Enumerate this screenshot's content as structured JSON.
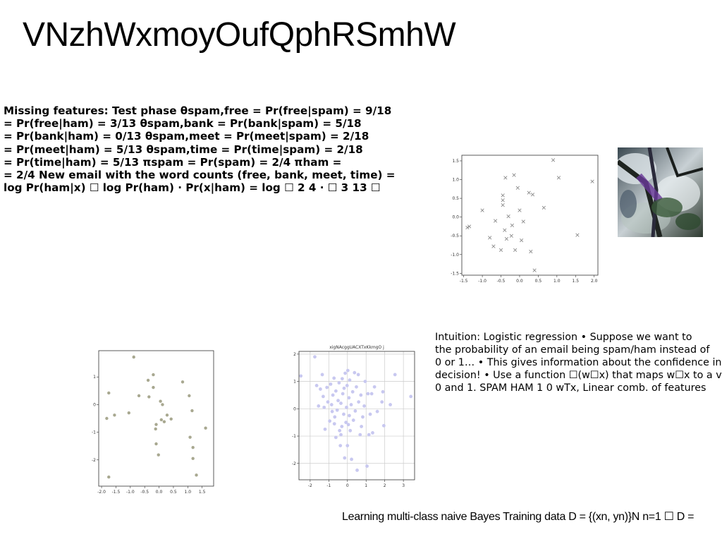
{
  "slide": {
    "title": "VNzhWxmoyOufQphRSmhW",
    "paragraph1_lines": [
      "Missing features: Test phase θspam,free = Pr(free|spam) = 9/18",
      "= Pr(free|ham) = 3/13 θspam,bank = Pr(bank|spam) = 5/18",
      "= Pr(bank|ham) = 0/13 θspam,meet = Pr(meet|spam) = 2/18",
      "= Pr(meet|ham) = 5/13 θspam,time = Pr(time|spam) = 2/18",
      "= Pr(time|ham) = 5/13 πspam = Pr(spam) = 2/4 πham =",
      "= 2/4 New email with the word counts (free, bank, meet, time) =",
      "log Pr(ham|x) ☐ log Pr(ham) · Pr(x|ham) = log ☐ 2 4 · ☐ 3 13 ☐"
    ],
    "paragraph2_lines": [
      "Intuition: Logistic regression • Suppose we want to",
      "the probability of an email being spam/ham instead of",
      "0 or 1… • This gives information about the confidence in",
      "decision! • Use a function ☐(w☐x) that maps w☐x to a value",
      "0 and 1. SPAM HAM 1 0 wTx, Linear comb. of features"
    ],
    "paragraph3": "Learning multi-class naive Bayes Training data D = {(xn, yn)}N n=1 ☐ D ="
  },
  "photo": {
    "description_icon": "tree-branch-photo"
  },
  "chart_data": [
    {
      "type": "scatter",
      "marker": "x",
      "color": "#8a8a8a",
      "xlim": [
        -1.55,
        2.1
      ],
      "ylim": [
        -1.55,
        1.65
      ],
      "xticks": [
        "-1.5",
        "-1.0",
        "-0.5",
        "0.0",
        "0.5",
        "1.0",
        "1.5",
        "2.0"
      ],
      "yticks": [
        "1.5",
        "1.0",
        "0.5",
        "0.0",
        "-0.5",
        "-1.0",
        "-1.5"
      ],
      "xtick_values": [
        -1.5,
        -1.0,
        -0.5,
        0.0,
        0.5,
        1.0,
        1.5,
        2.0
      ],
      "ytick_values": [
        1.5,
        1.0,
        0.5,
        0.0,
        -0.5,
        -1.0,
        -1.5
      ],
      "grid": false,
      "points": [
        [
          -1.4,
          -0.28
        ],
        [
          -1.35,
          -0.25
        ],
        [
          -1.0,
          0.18
        ],
        [
          -0.8,
          -0.55
        ],
        [
          -0.7,
          -0.78
        ],
        [
          -0.65,
          -0.1
        ],
        [
          -0.5,
          -0.88
        ],
        [
          -0.45,
          0.58
        ],
        [
          -0.45,
          0.45
        ],
        [
          -0.45,
          0.32
        ],
        [
          -0.4,
          -0.35
        ],
        [
          -0.38,
          1.05
        ],
        [
          -0.35,
          -0.58
        ],
        [
          -0.3,
          0.02
        ],
        [
          -0.22,
          -0.5
        ],
        [
          -0.2,
          -0.22
        ],
        [
          -0.15,
          1.12
        ],
        [
          -0.12,
          -0.88
        ],
        [
          -0.05,
          0.78
        ],
        [
          0.0,
          0.18
        ],
        [
          0.05,
          -0.62
        ],
        [
          0.1,
          -0.12
        ],
        [
          0.25,
          0.65
        ],
        [
          0.3,
          -0.92
        ],
        [
          0.35,
          0.6
        ],
        [
          0.4,
          -1.42
        ],
        [
          0.65,
          0.25
        ],
        [
          0.9,
          1.52
        ],
        [
          1.05,
          1.05
        ],
        [
          1.55,
          -0.48
        ],
        [
          1.95,
          0.95
        ]
      ]
    },
    {
      "type": "scatter",
      "marker": "o",
      "color": "#a8a890",
      "xlim": [
        -2.1,
        1.9
      ],
      "ylim": [
        -2.95,
        1.95
      ],
      "xticks": [
        "-2.0",
        "-1.5",
        "-1.0",
        "-0.5",
        "0.0",
        "0.5",
        "1.0",
        "1.5"
      ],
      "yticks": [
        "1",
        "0",
        "-1",
        "-2"
      ],
      "xtick_values": [
        -2.0,
        -1.5,
        -1.0,
        -0.5,
        0.0,
        0.5,
        1.0,
        1.5
      ],
      "ytick_values": [
        1,
        0,
        -1,
        -2
      ],
      "grid": false,
      "points": [
        [
          -1.82,
          -0.5
        ],
        [
          -1.75,
          0.42
        ],
        [
          -1.75,
          -2.62
        ],
        [
          -1.55,
          -0.38
        ],
        [
          -1.05,
          -0.3
        ],
        [
          -0.88,
          1.72
        ],
        [
          -0.7,
          0.32
        ],
        [
          -0.38,
          0.88
        ],
        [
          -0.35,
          0.28
        ],
        [
          -0.2,
          1.08
        ],
        [
          -0.2,
          0.62
        ],
        [
          -0.12,
          -0.88
        ],
        [
          -0.1,
          -0.72
        ],
        [
          -0.1,
          -1.42
        ],
        [
          -0.02,
          -1.82
        ],
        [
          0.05,
          0.12
        ],
        [
          0.08,
          -0.55
        ],
        [
          0.12,
          0.0
        ],
        [
          0.18,
          -0.62
        ],
        [
          0.28,
          -0.38
        ],
        [
          0.42,
          -0.52
        ],
        [
          0.82,
          0.82
        ],
        [
          1.05,
          0.32
        ],
        [
          1.08,
          -1.18
        ],
        [
          1.15,
          -0.22
        ],
        [
          1.18,
          -1.55
        ],
        [
          1.18,
          -1.95
        ],
        [
          1.3,
          -2.55
        ],
        [
          1.62,
          -0.85
        ]
      ]
    },
    {
      "type": "scatter",
      "marker": "o",
      "color": "#c8c8f0",
      "title": "xigNAcggUACXTxKkmgO j",
      "xlim": [
        -2.6,
        3.6
      ],
      "ylim": [
        -2.6,
        2.1
      ],
      "xticks": [
        "-2",
        "-1",
        "0",
        "1",
        "2",
        "3"
      ],
      "yticks": [
        "2",
        "1",
        "0",
        "-1",
        "-2"
      ],
      "xtick_values": [
        -2,
        -1,
        0,
        1,
        2,
        3
      ],
      "ytick_values": [
        2,
        1,
        0,
        -1,
        -2
      ],
      "grid": true,
      "points": [
        [
          -2.5,
          1.2
        ],
        [
          -1.75,
          1.9
        ],
        [
          -1.65,
          0.85
        ],
        [
          -1.45,
          0.72
        ],
        [
          -1.35,
          1.25
        ],
        [
          -1.3,
          0.45
        ],
        [
          -1.25,
          0.05
        ],
        [
          -1.2,
          -0.75
        ],
        [
          -1.1,
          0.78
        ],
        [
          -1.05,
          0.25
        ],
        [
          -0.95,
          -0.45
        ],
        [
          -0.9,
          0.9
        ],
        [
          -0.85,
          0.15
        ],
        [
          -0.82,
          -0.1
        ],
        [
          -0.78,
          0.5
        ],
        [
          -0.72,
          1.12
        ],
        [
          -0.7,
          -0.55
        ],
        [
          -0.68,
          -0.3
        ],
        [
          -0.62,
          0.65
        ],
        [
          -0.55,
          -0.05
        ],
        [
          -0.5,
          0.3
        ],
        [
          -0.45,
          0.95
        ],
        [
          -0.42,
          -0.8
        ],
        [
          -0.38,
          -1.35
        ],
        [
          -0.35,
          0.2
        ],
        [
          -0.3,
          -0.65
        ],
        [
          -0.28,
          1.1
        ],
        [
          -0.25,
          0.55
        ],
        [
          -0.2,
          -0.2
        ],
        [
          -0.18,
          0.75
        ],
        [
          -0.15,
          -1.8
        ],
        [
          -0.12,
          1.3
        ],
        [
          -0.08,
          -0.5
        ],
        [
          -0.05,
          0.05
        ],
        [
          -0.02,
          0.85
        ],
        [
          0.0,
          -1.35
        ],
        [
          0.02,
          1.4
        ],
        [
          0.05,
          -0.58
        ],
        [
          0.08,
          0.4
        ],
        [
          0.1,
          -0.25
        ],
        [
          0.12,
          1.05
        ],
        [
          0.15,
          -0.8
        ],
        [
          0.2,
          0.15
        ],
        [
          0.22,
          -1.85
        ],
        [
          0.28,
          0.62
        ],
        [
          0.32,
          -0.42
        ],
        [
          0.38,
          1.32
        ],
        [
          0.42,
          -0.08
        ],
        [
          0.48,
          0.8
        ],
        [
          0.52,
          -2.25
        ],
        [
          0.6,
          0.25
        ],
        [
          0.68,
          -0.95
        ],
        [
          0.72,
          0.5
        ],
        [
          0.75,
          -0.65
        ],
        [
          0.82,
          -0.3
        ],
        [
          0.9,
          0.1
        ],
        [
          0.95,
          1.0
        ],
        [
          1.05,
          -2.1
        ],
        [
          1.1,
          0.55
        ],
        [
          1.15,
          -0.95
        ],
        [
          1.22,
          -0.2
        ],
        [
          1.3,
          0.55
        ],
        [
          1.35,
          -0.88
        ],
        [
          1.45,
          0.8
        ],
        [
          1.6,
          -0.1
        ],
        [
          1.85,
          0.25
        ],
        [
          1.9,
          0.62
        ],
        [
          1.95,
          -0.62
        ],
        [
          2.3,
          0.15
        ],
        [
          2.55,
          1.25
        ],
        [
          3.4,
          0.45
        ],
        [
          -0.35,
          -0.95
        ],
        [
          0.58,
          1.25
        ],
        [
          -1.55,
          0.1
        ],
        [
          -0.62,
          -1.05
        ]
      ]
    }
  ]
}
